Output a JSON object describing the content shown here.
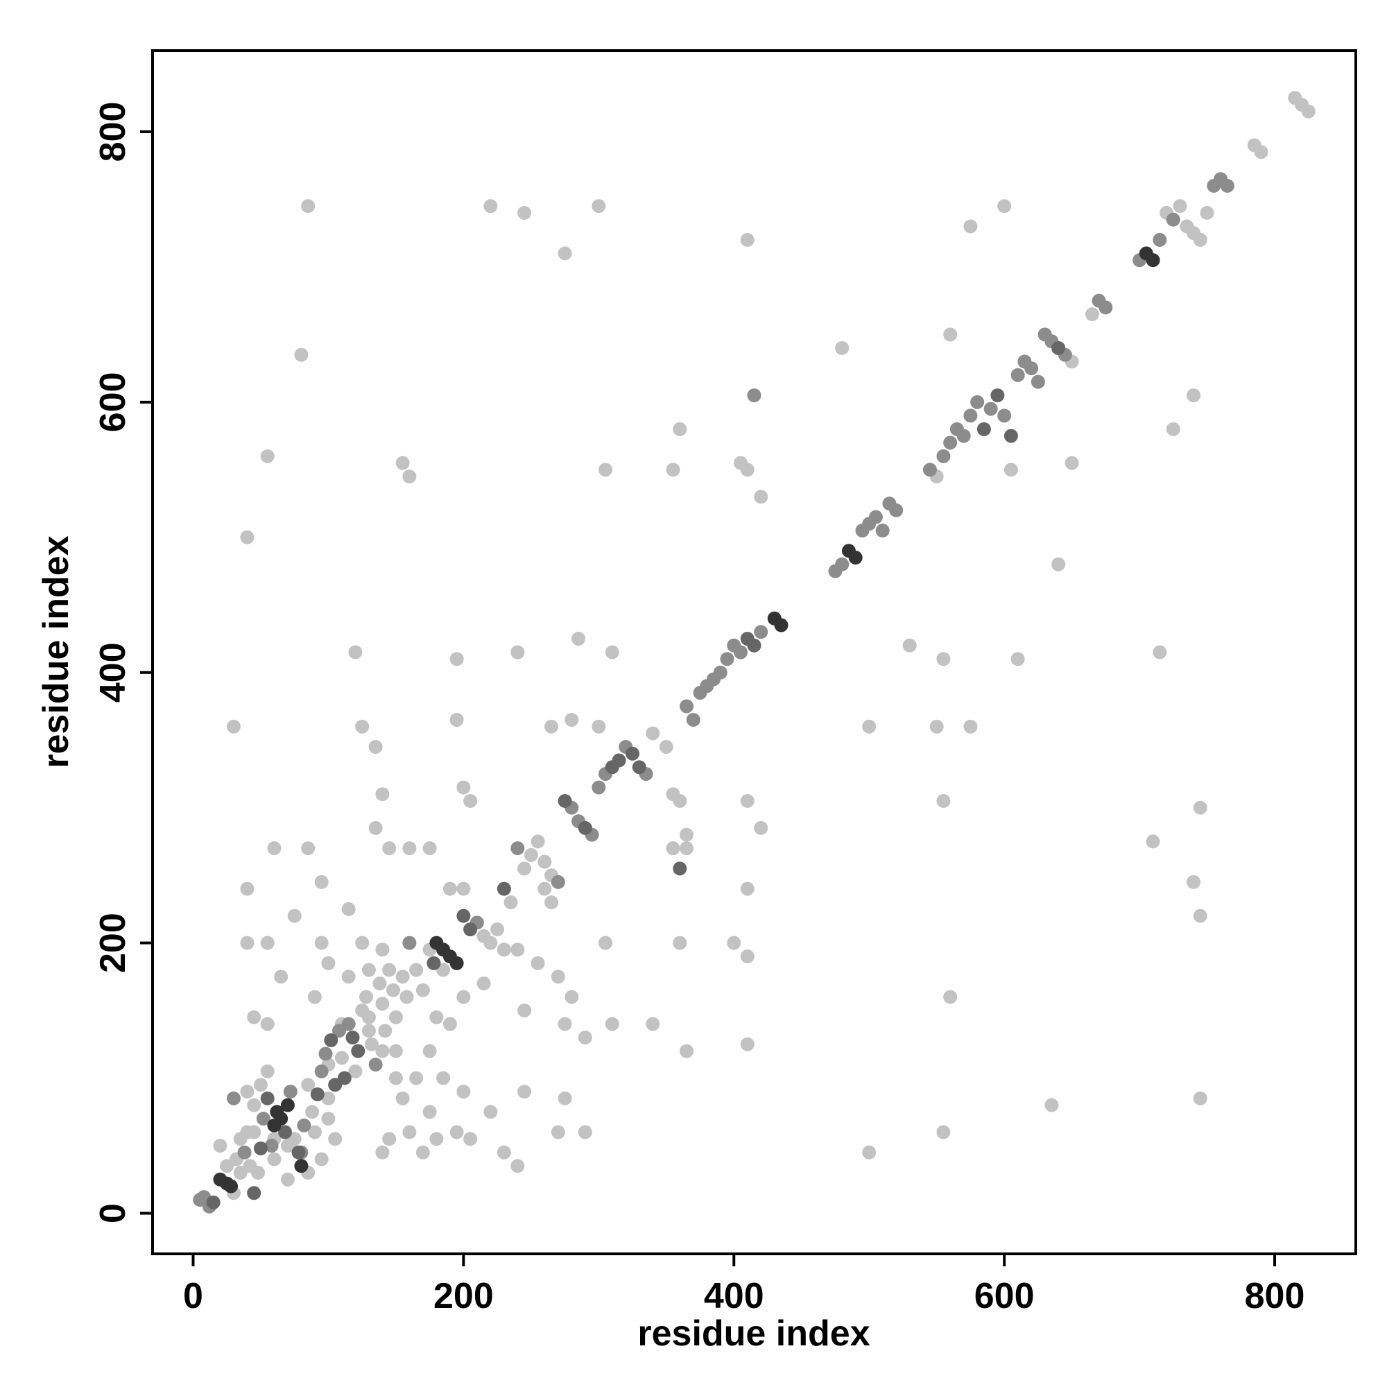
{
  "chart_data": {
    "type": "scatter",
    "title": "",
    "xlabel": "residue index",
    "ylabel": "residue index",
    "xlim": [
      -30,
      860
    ],
    "ylim": [
      -30,
      860
    ],
    "xticks": [
      0,
      200,
      400,
      600,
      800
    ],
    "yticks": [
      0,
      200,
      400,
      600,
      800
    ],
    "grid": false,
    "legend": "none",
    "colors": {
      "black": "#333333",
      "dark": "#666666",
      "mid": "#8c8c8c",
      "light": "#c2c2c2"
    },
    "points": [
      [
        5,
        10,
        2
      ],
      [
        8,
        12,
        2
      ],
      [
        12,
        5,
        2
      ],
      [
        15,
        8,
        1
      ],
      [
        20,
        25,
        0
      ],
      [
        25,
        22,
        0
      ],
      [
        28,
        20,
        0
      ],
      [
        32,
        40,
        3
      ],
      [
        35,
        55,
        3
      ],
      [
        38,
        45,
        2
      ],
      [
        40,
        60,
        3
      ],
      [
        42,
        35,
        3
      ],
      [
        45,
        15,
        1
      ],
      [
        48,
        30,
        3
      ],
      [
        50,
        48,
        1
      ],
      [
        52,
        70,
        2
      ],
      [
        55,
        85,
        1
      ],
      [
        58,
        50,
        2
      ],
      [
        60,
        65,
        0
      ],
      [
        62,
        75,
        0
      ],
      [
        65,
        70,
        0
      ],
      [
        68,
        60,
        1
      ],
      [
        70,
        80,
        0
      ],
      [
        72,
        90,
        2
      ],
      [
        75,
        55,
        3
      ],
      [
        78,
        45,
        1
      ],
      [
        80,
        35,
        0
      ],
      [
        82,
        65,
        2
      ],
      [
        85,
        95,
        3
      ],
      [
        88,
        75,
        3
      ],
      [
        90,
        60,
        3
      ],
      [
        92,
        88,
        1
      ],
      [
        95,
        105,
        2
      ],
      [
        98,
        118,
        2
      ],
      [
        100,
        110,
        3
      ],
      [
        102,
        128,
        1
      ],
      [
        105,
        95,
        1
      ],
      [
        108,
        135,
        2
      ],
      [
        110,
        115,
        3
      ],
      [
        112,
        100,
        1
      ],
      [
        115,
        140,
        2
      ],
      [
        118,
        130,
        1
      ],
      [
        120,
        105,
        3
      ],
      [
        122,
        120,
        1
      ],
      [
        125,
        150,
        3
      ],
      [
        128,
        160,
        3
      ],
      [
        130,
        145,
        3
      ],
      [
        132,
        125,
        3
      ],
      [
        135,
        110,
        2
      ],
      [
        138,
        170,
        3
      ],
      [
        140,
        155,
        3
      ],
      [
        142,
        135,
        3
      ],
      [
        145,
        180,
        3
      ],
      [
        148,
        165,
        3
      ],
      [
        150,
        145,
        3
      ],
      [
        155,
        175,
        3
      ],
      [
        158,
        160,
        3
      ],
      [
        160,
        200,
        2
      ],
      [
        165,
        180,
        3
      ],
      [
        170,
        165,
        3
      ],
      [
        175,
        195,
        3
      ],
      [
        178,
        185,
        1
      ],
      [
        180,
        200,
        0
      ],
      [
        185,
        195,
        0
      ],
      [
        190,
        190,
        0
      ],
      [
        195,
        185,
        0
      ],
      [
        200,
        220,
        1
      ],
      [
        205,
        210,
        1
      ],
      [
        210,
        215,
        2
      ],
      [
        215,
        205,
        3
      ],
      [
        220,
        200,
        3
      ],
      [
        225,
        210,
        3
      ],
      [
        230,
        240,
        1
      ],
      [
        235,
        230,
        3
      ],
      [
        240,
        270,
        2
      ],
      [
        245,
        255,
        3
      ],
      [
        250,
        265,
        3
      ],
      [
        255,
        275,
        3
      ],
      [
        260,
        260,
        3
      ],
      [
        265,
        250,
        3
      ],
      [
        270,
        245,
        2
      ],
      [
        275,
        305,
        1
      ],
      [
        280,
        300,
        2
      ],
      [
        285,
        290,
        2
      ],
      [
        290,
        285,
        1
      ],
      [
        295,
        280,
        2
      ],
      [
        300,
        315,
        2
      ],
      [
        305,
        325,
        2
      ],
      [
        310,
        330,
        1
      ],
      [
        315,
        335,
        1
      ],
      [
        320,
        345,
        2
      ],
      [
        325,
        340,
        1
      ],
      [
        330,
        330,
        1
      ],
      [
        335,
        325,
        2
      ],
      [
        340,
        355,
        3
      ],
      [
        350,
        345,
        3
      ],
      [
        355,
        270,
        3
      ],
      [
        360,
        255,
        1
      ],
      [
        365,
        375,
        2
      ],
      [
        370,
        365,
        2
      ],
      [
        375,
        385,
        2
      ],
      [
        380,
        390,
        2
      ],
      [
        385,
        395,
        2
      ],
      [
        390,
        400,
        2
      ],
      [
        395,
        410,
        2
      ],
      [
        400,
        420,
        2
      ],
      [
        405,
        415,
        2
      ],
      [
        410,
        425,
        1
      ],
      [
        415,
        420,
        1
      ],
      [
        420,
        430,
        2
      ],
      [
        430,
        440,
        0
      ],
      [
        435,
        435,
        0
      ],
      [
        475,
        475,
        2
      ],
      [
        480,
        480,
        2
      ],
      [
        485,
        490,
        0
      ],
      [
        490,
        485,
        0
      ],
      [
        495,
        505,
        2
      ],
      [
        500,
        510,
        2
      ],
      [
        505,
        515,
        2
      ],
      [
        510,
        505,
        2
      ],
      [
        515,
        525,
        2
      ],
      [
        520,
        520,
        2
      ],
      [
        545,
        550,
        2
      ],
      [
        550,
        545,
        3
      ],
      [
        555,
        560,
        2
      ],
      [
        560,
        570,
        2
      ],
      [
        565,
        580,
        2
      ],
      [
        570,
        575,
        2
      ],
      [
        575,
        590,
        2
      ],
      [
        580,
        600,
        2
      ],
      [
        585,
        580,
        1
      ],
      [
        590,
        595,
        2
      ],
      [
        595,
        605,
        1
      ],
      [
        600,
        590,
        2
      ],
      [
        605,
        575,
        1
      ],
      [
        610,
        620,
        2
      ],
      [
        615,
        630,
        2
      ],
      [
        620,
        625,
        2
      ],
      [
        625,
        615,
        2
      ],
      [
        630,
        650,
        2
      ],
      [
        635,
        645,
        2
      ],
      [
        640,
        640,
        1
      ],
      [
        645,
        635,
        2
      ],
      [
        650,
        630,
        3
      ],
      [
        665,
        665,
        3
      ],
      [
        670,
        675,
        2
      ],
      [
        675,
        670,
        2
      ],
      [
        700,
        705,
        2
      ],
      [
        705,
        710,
        0
      ],
      [
        710,
        705,
        0
      ],
      [
        715,
        720,
        2
      ],
      [
        720,
        740,
        3
      ],
      [
        725,
        735,
        2
      ],
      [
        730,
        745,
        3
      ],
      [
        735,
        730,
        3
      ],
      [
        740,
        725,
        3
      ],
      [
        745,
        720,
        3
      ],
      [
        750,
        740,
        3
      ],
      [
        755,
        760,
        2
      ],
      [
        760,
        765,
        2
      ],
      [
        765,
        760,
        2
      ],
      [
        785,
        790,
        3
      ],
      [
        790,
        785,
        3
      ],
      [
        815,
        825,
        3
      ],
      [
        820,
        820,
        3
      ],
      [
        825,
        815,
        3
      ],
      [
        60,
        270,
        3
      ],
      [
        85,
        270,
        3
      ],
      [
        95,
        245,
        3
      ],
      [
        40,
        240,
        3
      ],
      [
        40,
        200,
        3
      ],
      [
        55,
        200,
        3
      ],
      [
        65,
        175,
        3
      ],
      [
        90,
        160,
        3
      ],
      [
        45,
        145,
        3
      ],
      [
        55,
        140,
        3
      ],
      [
        75,
        220,
        3
      ],
      [
        30,
        360,
        3
      ],
      [
        40,
        500,
        3
      ],
      [
        55,
        560,
        3
      ],
      [
        80,
        635,
        3
      ],
      [
        85,
        745,
        3
      ],
      [
        120,
        415,
        3
      ],
      [
        125,
        360,
        3
      ],
      [
        135,
        345,
        3
      ],
      [
        140,
        310,
        3
      ],
      [
        135,
        285,
        3
      ],
      [
        145,
        270,
        3
      ],
      [
        160,
        270,
        3
      ],
      [
        175,
        270,
        3
      ],
      [
        155,
        555,
        3
      ],
      [
        160,
        545,
        3
      ],
      [
        195,
        410,
        3
      ],
      [
        195,
        365,
        3
      ],
      [
        200,
        315,
        3
      ],
      [
        205,
        305,
        3
      ],
      [
        190,
        240,
        3
      ],
      [
        200,
        240,
        3
      ],
      [
        220,
        745,
        3
      ],
      [
        245,
        740,
        3
      ],
      [
        275,
        710,
        3
      ],
      [
        300,
        745,
        3
      ],
      [
        305,
        550,
        3
      ],
      [
        310,
        415,
        3
      ],
      [
        285,
        425,
        3
      ],
      [
        280,
        365,
        3
      ],
      [
        300,
        360,
        3
      ],
      [
        265,
        360,
        3
      ],
      [
        305,
        200,
        3
      ],
      [
        310,
        140,
        3
      ],
      [
        270,
        175,
        3
      ],
      [
        275,
        140,
        3
      ],
      [
        280,
        160,
        3
      ],
      [
        290,
        130,
        3
      ],
      [
        340,
        140,
        3
      ],
      [
        355,
        550,
        3
      ],
      [
        360,
        580,
        3
      ],
      [
        355,
        310,
        3
      ],
      [
        360,
        305,
        3
      ],
      [
        365,
        280,
        3
      ],
      [
        365,
        270,
        3
      ],
      [
        360,
        200,
        3
      ],
      [
        365,
        120,
        3
      ],
      [
        240,
        415,
        3
      ],
      [
        410,
        720,
        3
      ],
      [
        415,
        605,
        2
      ],
      [
        405,
        555,
        3
      ],
      [
        410,
        550,
        3
      ],
      [
        420,
        530,
        3
      ],
      [
        420,
        285,
        3
      ],
      [
        410,
        305,
        3
      ],
      [
        410,
        240,
        3
      ],
      [
        400,
        200,
        3
      ],
      [
        410,
        190,
        3
      ],
      [
        410,
        125,
        3
      ],
      [
        480,
        640,
        3
      ],
      [
        500,
        360,
        3
      ],
      [
        500,
        45,
        3
      ],
      [
        530,
        420,
        3
      ],
      [
        550,
        360,
        3
      ],
      [
        555,
        305,
        3
      ],
      [
        555,
        410,
        3
      ],
      [
        560,
        650,
        3
      ],
      [
        560,
        160,
        3
      ],
      [
        555,
        60,
        3
      ],
      [
        575,
        730,
        3
      ],
      [
        575,
        360,
        3
      ],
      [
        600,
        745,
        3
      ],
      [
        610,
        410,
        3
      ],
      [
        605,
        550,
        3
      ],
      [
        640,
        480,
        3
      ],
      [
        650,
        555,
        3
      ],
      [
        635,
        80,
        3
      ],
      [
        710,
        275,
        3
      ],
      [
        715,
        415,
        3
      ],
      [
        725,
        580,
        3
      ],
      [
        740,
        605,
        3
      ],
      [
        740,
        245,
        3
      ],
      [
        745,
        220,
        3
      ],
      [
        745,
        85,
        3
      ],
      [
        745,
        300,
        3
      ],
      [
        30,
        85,
        2
      ],
      [
        40,
        90,
        3
      ],
      [
        45,
        80,
        3
      ],
      [
        50,
        95,
        3
      ],
      [
        55,
        105,
        3
      ],
      [
        60,
        55,
        3
      ],
      [
        70,
        50,
        3
      ],
      [
        45,
        60,
        3
      ],
      [
        35,
        30,
        3
      ],
      [
        30,
        15,
        3
      ],
      [
        20,
        50,
        3
      ],
      [
        25,
        35,
        3
      ],
      [
        60,
        40,
        3
      ],
      [
        70,
        25,
        3
      ],
      [
        80,
        45,
        2
      ],
      [
        85,
        30,
        3
      ],
      [
        95,
        40,
        3
      ],
      [
        100,
        70,
        3
      ],
      [
        105,
        55,
        3
      ],
      [
        100,
        85,
        3
      ],
      [
        100,
        185,
        3
      ],
      [
        95,
        200,
        3
      ],
      [
        115,
        175,
        3
      ],
      [
        110,
        140,
        3
      ],
      [
        130,
        135,
        3
      ],
      [
        140,
        120,
        3
      ],
      [
        150,
        100,
        3
      ],
      [
        155,
        85,
        3
      ],
      [
        145,
        55,
        3
      ],
      [
        140,
        45,
        3
      ],
      [
        160,
        60,
        3
      ],
      [
        170,
        45,
        3
      ],
      [
        175,
        75,
        3
      ],
      [
        185,
        100,
        3
      ],
      [
        180,
        55,
        3
      ],
      [
        195,
        60,
        3
      ],
      [
        205,
        55,
        3
      ],
      [
        200,
        90,
        3
      ],
      [
        220,
        75,
        3
      ],
      [
        230,
        45,
        3
      ],
      [
        240,
        35,
        3
      ],
      [
        245,
        90,
        3
      ],
      [
        270,
        60,
        3
      ],
      [
        275,
        85,
        3
      ],
      [
        290,
        60,
        3
      ],
      [
        190,
        140,
        3
      ],
      [
        185,
        180,
        3
      ],
      [
        200,
        160,
        3
      ],
      [
        215,
        170,
        3
      ],
      [
        180,
        145,
        3
      ],
      [
        175,
        120,
        3
      ],
      [
        165,
        100,
        3
      ],
      [
        150,
        120,
        3
      ],
      [
        130,
        180,
        3
      ],
      [
        140,
        195,
        3
      ],
      [
        125,
        200,
        3
      ],
      [
        115,
        225,
        3
      ],
      [
        260,
        240,
        3
      ],
      [
        265,
        230,
        3
      ],
      [
        230,
        195,
        3
      ],
      [
        240,
        195,
        3
      ],
      [
        255,
        185,
        3
      ],
      [
        245,
        150,
        3
      ]
    ]
  }
}
